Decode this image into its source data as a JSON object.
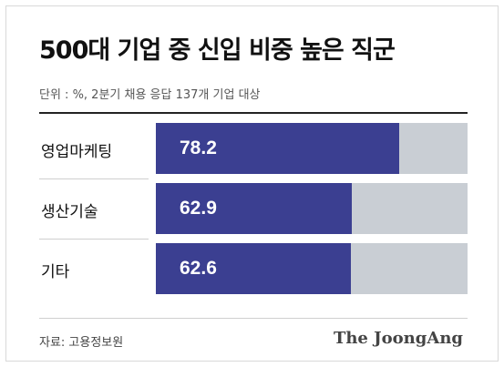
{
  "title": "500대 기업 중 신입 비중 높은 직군",
  "unit_note": "단위 : %, 2분기 채용 응답 137개 기업 대상",
  "source": "자료: 고용정보원",
  "brand": "The JoongAng",
  "colors": {
    "bar": "#3b3f91",
    "track": "#c9ced4"
  },
  "chart_data": {
    "type": "bar",
    "orientation": "horizontal",
    "categories": [
      "영업마케팅",
      "생산기술",
      "기타"
    ],
    "values": [
      78.2,
      62.9,
      62.6
    ],
    "value_labels": [
      "78.2",
      "62.9",
      "62.6"
    ],
    "xlim": [
      0,
      100
    ]
  }
}
